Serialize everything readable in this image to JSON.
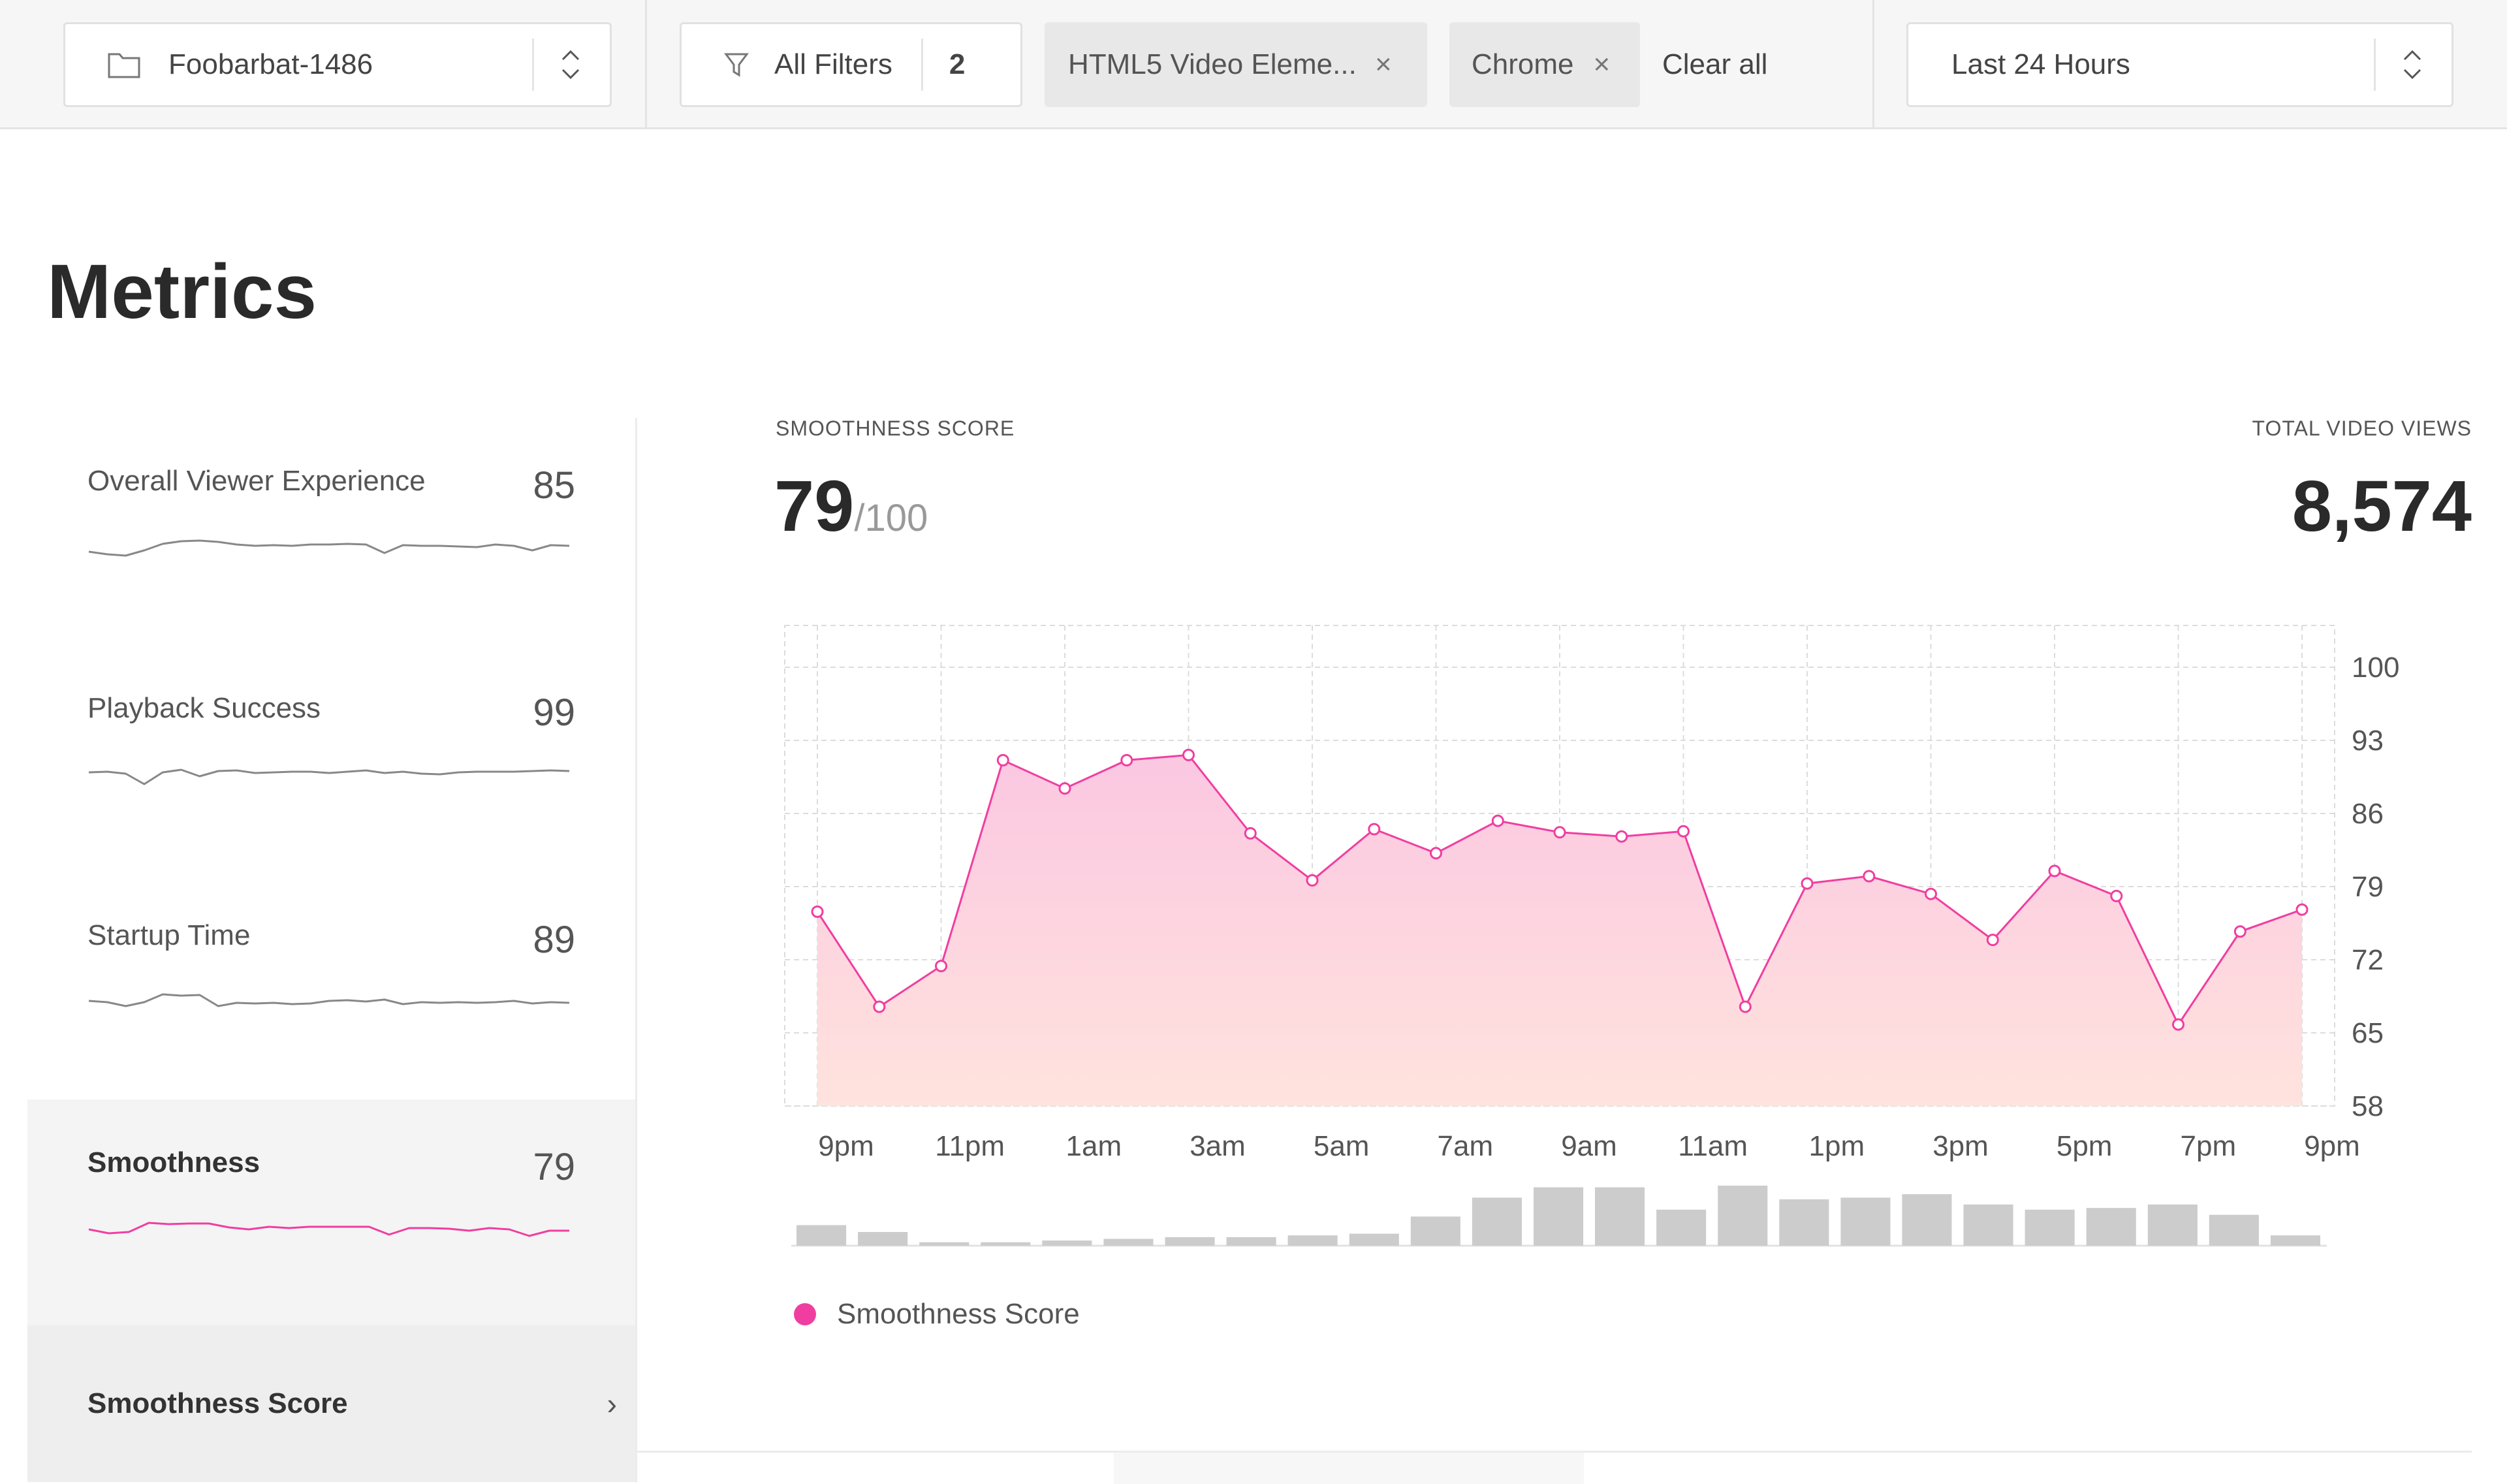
{
  "topbar": {
    "project": {
      "label": "Foobarbat-1486",
      "icon": "folder-icon",
      "stepper_icon": "chevron-up-down-icon"
    },
    "filters": {
      "label": "All Filters",
      "count": "2",
      "icon": "filter-icon"
    },
    "chips": [
      {
        "label": "HTML5 Video Eleme...",
        "remove": "×"
      },
      {
        "label": "Chrome",
        "remove": "×"
      }
    ],
    "clear_all": "Clear all",
    "timerange": {
      "label": "Last 24 Hours",
      "stepper_icon": "chevron-up-down-icon"
    }
  },
  "page": {
    "title": "Metrics"
  },
  "sidebar": {
    "metrics": [
      {
        "name": "Overall Viewer Experience",
        "value": "85",
        "active": false,
        "spark": [
          60,
          56,
          54,
          62,
          72,
          76,
          77,
          75,
          71,
          69,
          70,
          69,
          71,
          71,
          72,
          71,
          58,
          70,
          69,
          69,
          68,
          67,
          71,
          69,
          62,
          70,
          69
        ]
      },
      {
        "name": "Playback Success",
        "value": "99",
        "active": false,
        "spark": [
          70,
          71,
          68,
          52,
          70,
          74,
          64,
          72,
          73,
          69,
          70,
          71,
          71,
          69,
          71,
          73,
          69,
          71,
          68,
          67,
          70,
          71,
          71,
          71,
          72,
          73,
          72
        ]
      },
      {
        "name": "Startup Time",
        "value": "89",
        "active": false,
        "spark": [
          68,
          66,
          60,
          66,
          78,
          76,
          77,
          60,
          65,
          64,
          65,
          63,
          64,
          68,
          69,
          67,
          70,
          63,
          66,
          65,
          66,
          65,
          66,
          68,
          64,
          66,
          65
        ]
      },
      {
        "name": "Smoothness",
        "value": "79",
        "active": true,
        "spark": [
          66,
          60,
          62,
          76,
          74,
          75,
          75,
          69,
          66,
          70,
          68,
          70,
          70,
          70,
          70,
          58,
          68,
          68,
          67,
          64,
          68,
          66,
          56,
          64,
          64
        ]
      }
    ],
    "sub_item": {
      "label": "Smoothness Score",
      "chevron": "›"
    }
  },
  "kpis": {
    "score_label": "SMOOTHNESS SCORE",
    "score_value": "79",
    "score_suffix": "/100",
    "views_label": "TOTAL VIDEO VIEWS",
    "views_value": "8,574"
  },
  "colors": {
    "accent": "#f03ea0",
    "area_top": "#fbc7e1",
    "area_bottom": "#ffe3dd",
    "bars": "#cccccc"
  },
  "chart_data": {
    "type": "area",
    "x_tick_labels": [
      "9pm",
      "11pm",
      "1am",
      "3am",
      "5am",
      "7am",
      "9am",
      "11am",
      "1pm",
      "3pm",
      "5pm",
      "7pm",
      "9pm"
    ],
    "y_ticks": [
      100,
      93,
      86,
      79,
      72,
      65,
      58
    ],
    "ylim": [
      58,
      104
    ],
    "series": [
      {
        "name": "Smoothness Score",
        "values": [
          76.6,
          67.5,
          71.4,
          91.1,
          88.4,
          91.1,
          91.6,
          84.1,
          79.6,
          84.5,
          82.2,
          85.3,
          84.2,
          83.8,
          84.3,
          67.5,
          79.3,
          80.0,
          78.3,
          73.9,
          80.5,
          78.1,
          65.8,
          74.7,
          76.8
        ]
      }
    ],
    "views_bars": [
      12,
      8,
      2,
      2,
      3,
      4,
      5,
      5,
      6,
      7,
      17,
      28,
      34,
      34,
      21,
      35,
      27,
      28,
      30,
      24,
      21,
      22,
      24,
      18,
      6
    ],
    "legend": [
      {
        "label": "Smoothness Score"
      }
    ],
    "grid": true,
    "legend_position": "bottom-left"
  }
}
